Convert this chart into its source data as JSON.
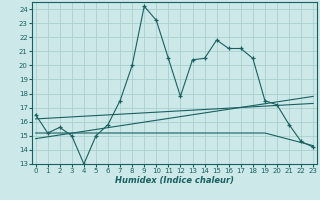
{
  "xlabel": "Humidex (Indice chaleur)",
  "bg_color": "#cce8e8",
  "grid_color": "#aacfcf",
  "line_color": "#1a6060",
  "x_ticks": [
    0,
    1,
    2,
    3,
    4,
    5,
    6,
    7,
    8,
    9,
    10,
    11,
    12,
    13,
    14,
    15,
    16,
    17,
    18,
    19,
    20,
    21,
    22,
    23
  ],
  "ylim": [
    13,
    24.5
  ],
  "xlim": [
    -0.3,
    23.3
  ],
  "yticks": [
    13,
    14,
    15,
    16,
    17,
    18,
    19,
    20,
    21,
    22,
    23,
    24
  ],
  "main_line": [
    16.5,
    15.2,
    15.6,
    15.0,
    13.0,
    15.0,
    15.8,
    17.5,
    20.0,
    24.2,
    23.2,
    20.5,
    17.8,
    20.4,
    20.5,
    21.8,
    21.2,
    21.2,
    20.5,
    17.5,
    17.2,
    15.8,
    14.6,
    14.2
  ],
  "trend_line1": [
    [
      0,
      14.8
    ],
    [
      23,
      17.8
    ]
  ],
  "trend_line2": [
    [
      0,
      16.2
    ],
    [
      23,
      17.3
    ]
  ],
  "flat_line": [
    [
      0,
      15.2
    ],
    [
      19,
      15.2
    ],
    [
      23,
      14.3
    ]
  ]
}
